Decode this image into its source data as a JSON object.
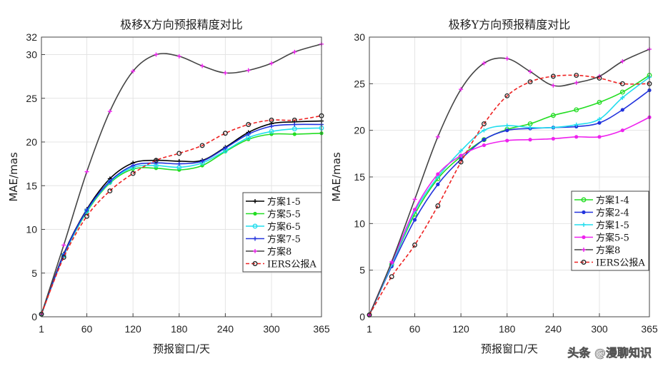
{
  "watermark": "头条 @漫聊知识",
  "chart_data": [
    {
      "type": "line",
      "title": "极移X方向预报精度对比",
      "xlabel": "预报窗口/天",
      "ylabel": "MAE/mas",
      "xlim": [
        1,
        365
      ],
      "ylim": [
        0,
        32
      ],
      "xticks": [
        1,
        60,
        120,
        180,
        240,
        300,
        365
      ],
      "yticks": [
        0,
        5,
        10,
        15,
        20,
        25,
        30,
        32
      ],
      "legend_position": "lower-right",
      "series": [
        {
          "name": "方案1-5",
          "color": "#000000",
          "dash": false,
          "marker": "plus",
          "x": [
            1,
            30,
            60,
            90,
            120,
            150,
            180,
            210,
            240,
            270,
            300,
            330,
            365
          ],
          "y": [
            0.3,
            7.2,
            12.3,
            15.8,
            17.6,
            17.9,
            17.8,
            17.9,
            19.4,
            21.1,
            22.1,
            22.3,
            22.4
          ]
        },
        {
          "name": "方案5-5",
          "color": "#22dd22",
          "dash": false,
          "marker": "dot",
          "x": [
            1,
            30,
            60,
            90,
            120,
            150,
            180,
            210,
            240,
            270,
            300,
            330,
            365
          ],
          "y": [
            0.3,
            7.0,
            12.0,
            15.3,
            16.9,
            17.0,
            16.8,
            17.3,
            18.9,
            20.3,
            20.9,
            20.9,
            21.0
          ]
        },
        {
          "name": "方案6-5",
          "color": "#22ddee",
          "dash": false,
          "marker": "circle",
          "x": [
            1,
            30,
            60,
            90,
            120,
            150,
            180,
            210,
            240,
            270,
            300,
            330,
            365
          ],
          "y": [
            0.3,
            7.0,
            12.1,
            15.4,
            17.1,
            17.3,
            17.1,
            17.6,
            19.0,
            20.5,
            21.2,
            21.5,
            21.6
          ]
        },
        {
          "name": "方案7-5",
          "color": "#2233dd",
          "dash": false,
          "marker": "plus",
          "x": [
            1,
            30,
            60,
            90,
            120,
            150,
            180,
            210,
            240,
            270,
            300,
            330,
            365
          ],
          "y": [
            0.3,
            7.1,
            12.2,
            15.5,
            17.3,
            17.6,
            17.5,
            17.8,
            19.3,
            20.9,
            21.8,
            22.0,
            22.0
          ]
        },
        {
          "name": "方案8",
          "color": "#444444",
          "dash": false,
          "marker": "plus",
          "x": [
            1,
            30,
            60,
            90,
            120,
            150,
            180,
            210,
            240,
            270,
            300,
            330,
            365
          ],
          "y": [
            0.3,
            8.2,
            16.6,
            23.5,
            28.1,
            30.0,
            29.8,
            28.7,
            27.9,
            28.2,
            29.0,
            30.3,
            31.2
          ]
        },
        {
          "name": "IERS公报A",
          "color": "#ee2222",
          "dash": true,
          "marker": "circle",
          "x": [
            1,
            30,
            60,
            90,
            120,
            150,
            180,
            210,
            240,
            270,
            300,
            330,
            365
          ],
          "y": [
            0.3,
            6.8,
            11.5,
            14.4,
            16.4,
            17.9,
            18.7,
            19.6,
            21.0,
            22.0,
            22.5,
            22.5,
            23.0
          ]
        }
      ]
    },
    {
      "type": "line",
      "title": "极移Y方向预报精度对比",
      "xlabel": "预报窗口/天",
      "ylabel": "MAE/mas",
      "xlim": [
        1,
        365
      ],
      "ylim": [
        0,
        30
      ],
      "xticks": [
        1,
        60,
        120,
        180,
        240,
        300,
        365
      ],
      "yticks": [
        0,
        5,
        10,
        15,
        20,
        25,
        30
      ],
      "legend_position": "lower-right",
      "series": [
        {
          "name": "方案1-4",
          "color": "#22dd22",
          "dash": false,
          "marker": "circle",
          "x": [
            1,
            30,
            60,
            90,
            120,
            150,
            180,
            210,
            240,
            270,
            300,
            330,
            365
          ],
          "y": [
            0.2,
            5.6,
            11.0,
            14.8,
            17.2,
            19.0,
            20.1,
            20.7,
            21.6,
            22.2,
            23.0,
            24.1,
            25.9
          ]
        },
        {
          "name": "方案2-4",
          "color": "#2233dd",
          "dash": false,
          "marker": "dot",
          "x": [
            1,
            30,
            60,
            90,
            120,
            150,
            180,
            210,
            240,
            270,
            300,
            330,
            365
          ],
          "y": [
            0.2,
            5.4,
            10.4,
            14.2,
            16.9,
            19.0,
            20.0,
            20.2,
            20.3,
            20.4,
            20.8,
            22.2,
            24.3
          ]
        },
        {
          "name": "方案1-5",
          "color": "#22ddee",
          "dash": false,
          "marker": "plus",
          "x": [
            1,
            30,
            60,
            90,
            120,
            150,
            180,
            210,
            240,
            270,
            300,
            330,
            365
          ],
          "y": [
            0.2,
            5.6,
            11.3,
            15.0,
            17.8,
            20.0,
            20.5,
            20.3,
            20.3,
            20.6,
            21.2,
            23.5,
            25.7
          ]
        },
        {
          "name": "方案5-5",
          "color": "#ee22ee",
          "dash": false,
          "marker": "dot",
          "x": [
            1,
            30,
            60,
            90,
            120,
            150,
            180,
            210,
            240,
            270,
            300,
            330,
            365
          ],
          "y": [
            0.2,
            5.8,
            11.5,
            15.3,
            17.3,
            18.4,
            18.9,
            19.0,
            19.1,
            19.3,
            19.3,
            20.0,
            21.4
          ]
        },
        {
          "name": "方案8",
          "color": "#444444",
          "dash": false,
          "marker": "plus",
          "x": [
            1,
            30,
            60,
            90,
            120,
            150,
            180,
            210,
            240,
            270,
            300,
            330,
            365
          ],
          "y": [
            0.2,
            5.9,
            12.6,
            19.3,
            24.4,
            27.2,
            27.7,
            26.3,
            24.8,
            25.1,
            25.8,
            27.4,
            28.7
          ]
        },
        {
          "name": "IERS公报A",
          "color": "#ee2222",
          "dash": true,
          "marker": "circle",
          "x": [
            1,
            30,
            60,
            90,
            120,
            150,
            180,
            210,
            240,
            270,
            300,
            330,
            365
          ],
          "y": [
            0.2,
            4.3,
            7.7,
            11.9,
            16.6,
            20.7,
            23.7,
            25.2,
            25.8,
            25.9,
            25.6,
            25.0,
            25.0
          ]
        }
      ]
    }
  ]
}
